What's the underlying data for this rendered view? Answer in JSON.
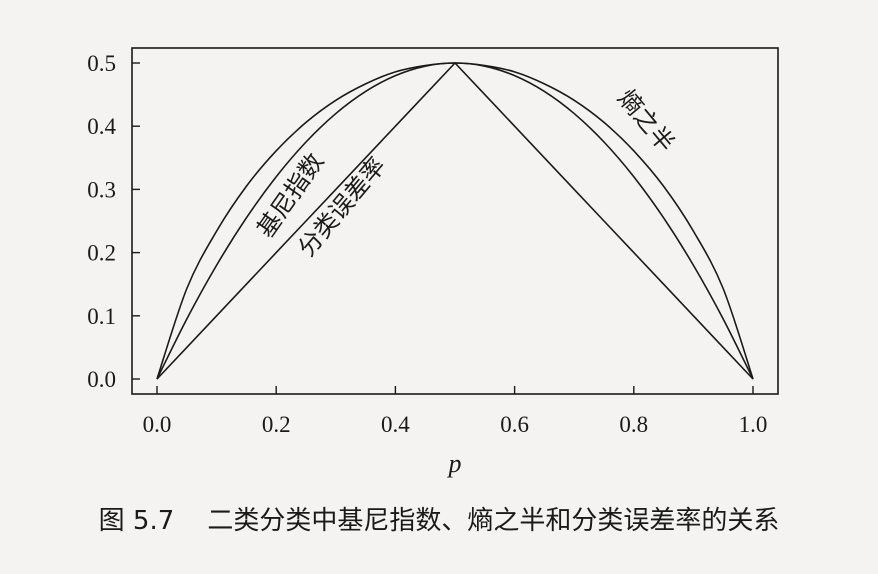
{
  "chart_data": {
    "type": "line",
    "xlabel": "p",
    "ylabel": "",
    "xlim": [
      0,
      1
    ],
    "ylim": [
      0,
      0.5
    ],
    "xticks": [
      "0.0",
      "0.2",
      "0.4",
      "0.6",
      "0.8",
      "1.0"
    ],
    "yticks": [
      "0.0",
      "0.1",
      "0.2",
      "0.3",
      "0.4",
      "0.5"
    ],
    "grid": false,
    "x": [
      0.0,
      0.05,
      0.1,
      0.15,
      0.2,
      0.25,
      0.3,
      0.35,
      0.4,
      0.45,
      0.5,
      0.55,
      0.6,
      0.65,
      0.7,
      0.75,
      0.8,
      0.85,
      0.9,
      0.95,
      1.0
    ],
    "series": [
      {
        "name": "熵之半",
        "values": [
          0.0,
          0.143,
          0.234,
          0.305,
          0.361,
          0.406,
          0.441,
          0.467,
          0.486,
          0.496,
          0.5,
          0.496,
          0.486,
          0.467,
          0.441,
          0.406,
          0.361,
          0.305,
          0.234,
          0.143,
          0.0
        ]
      },
      {
        "name": "基尼指数",
        "values": [
          0.0,
          0.095,
          0.18,
          0.255,
          0.32,
          0.375,
          0.42,
          0.455,
          0.48,
          0.495,
          0.5,
          0.495,
          0.48,
          0.455,
          0.42,
          0.375,
          0.32,
          0.255,
          0.18,
          0.095,
          0.0
        ]
      },
      {
        "name": "分类误差率",
        "values": [
          0.0,
          0.05,
          0.1,
          0.15,
          0.2,
          0.25,
          0.3,
          0.35,
          0.4,
          0.45,
          0.5,
          0.45,
          0.4,
          0.35,
          0.3,
          0.25,
          0.2,
          0.15,
          0.1,
          0.05,
          0.0
        ]
      }
    ],
    "annotations": {
      "entropy": "熵之半",
      "gini": "基尼指数",
      "error": "分类误差率"
    }
  },
  "caption": "图 5.7    二类分类中基尼指数、熵之半和分类误差率的关系"
}
